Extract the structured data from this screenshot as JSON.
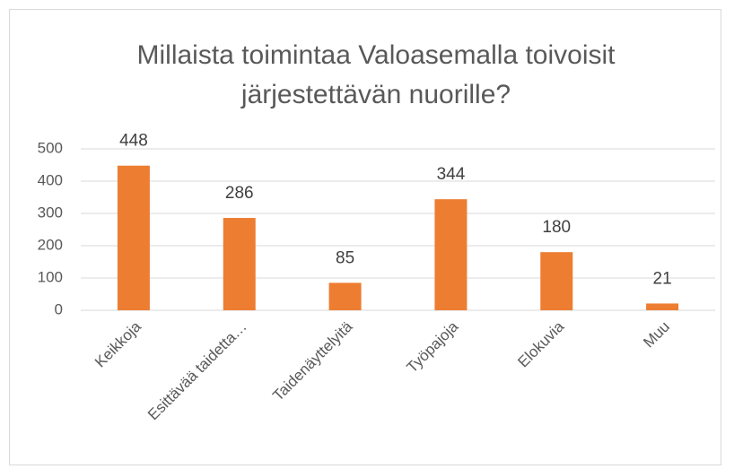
{
  "chart_data": {
    "type": "bar",
    "title": "Millaista toimintaa Valoasemalla toivoisit järjestettävän nuorille?",
    "categories": [
      "Keikkoja",
      "Esittävää taidetta…",
      "Taidenäyttelyitä",
      "Työpajoja",
      "Elokuvia",
      "Muu"
    ],
    "values": [
      448,
      286,
      85,
      344,
      180,
      21
    ],
    "color": "#ed7d31",
    "ylim": [
      0,
      500
    ],
    "yticks": [
      0,
      100,
      200,
      300,
      400,
      500
    ],
    "grid": true,
    "data_labels": true
  }
}
